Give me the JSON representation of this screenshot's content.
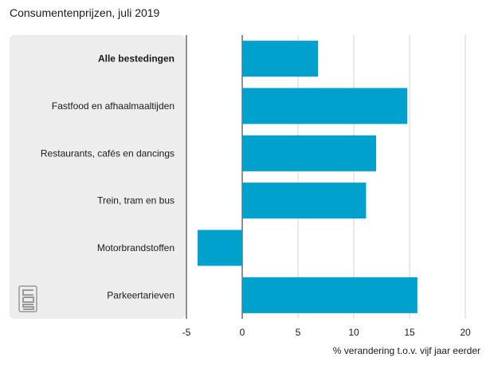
{
  "chart_data": {
    "type": "bar",
    "orientation": "horizontal",
    "title": "Consumentenprijzen, juli 2019",
    "categories": [
      "Alle bestedingen",
      "Fastfood en afhaalmaaltijden",
      "Restaurants, cafés en dancings",
      "Trein, tram en bus",
      "Motorbrandstoffen",
      "Parkeertarieven"
    ],
    "values": [
      6.8,
      14.8,
      12.0,
      11.1,
      -4.0,
      15.7
    ],
    "xlabel": "% verandering t.o.v. vijf jaar eerder",
    "ylabel": "",
    "xlim": [
      -5,
      20
    ],
    "xticks": [
      -5,
      0,
      5,
      10,
      15,
      20
    ],
    "grid": true,
    "bar_color": "#00a1cd",
    "highlight_category": "Alle bestedingen"
  },
  "logo": {
    "text": "cbs"
  }
}
